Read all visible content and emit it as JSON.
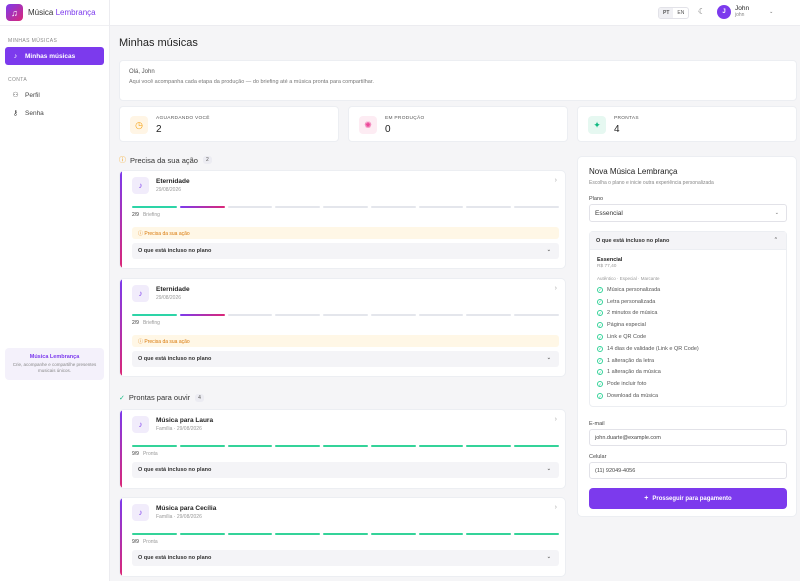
{
  "brand": {
    "name_main": "Música",
    "name_accent": "Lembrança"
  },
  "sidebar": {
    "section_songs": "MINHAS MÚSICAS",
    "item_songs": "Minhas músicas",
    "section_account": "CONTA",
    "item_profile": "Perfil",
    "item_password": "Senha",
    "card_title": "Música Lembrança",
    "card_text": "Crie, acompanhe e compartilhe presentes musicais únicos."
  },
  "topbar": {
    "lang_pt": "PT",
    "lang_en": "EN",
    "user_name": "John",
    "user_initial": "J",
    "user_email": "john"
  },
  "page": {
    "title": "Minhas músicas",
    "greeting": "Olá, John",
    "subtitle": "Aqui você acompanha cada etapa da produção — do briefing até a música pronta para compartilhar."
  },
  "stats": [
    {
      "label": "AGUARDANDO VOCÊ",
      "value": "2",
      "color": "#f59e0b",
      "bg": "#fff5e5"
    },
    {
      "label": "EM PRODUÇÃO",
      "value": "0",
      "color": "#ec4899",
      "bg": "#fdecf3"
    },
    {
      "label": "PRONTAS",
      "value": "4",
      "color": "#10b981",
      "bg": "#e6f8f1"
    }
  ],
  "section_action": {
    "title": "Precisa da sua ação",
    "count": "2"
  },
  "section_ready": {
    "title": "Prontas para ouvir",
    "count": "4"
  },
  "cards": [
    {
      "title": "Eternidade",
      "date": "29/08/2026",
      "step": "2/9",
      "stage": "Briefing",
      "alert": "Precisa da sua ação",
      "included": "O que está incluso no plano",
      "progress": 2
    },
    {
      "title": "Eternidade",
      "date": "29/08/2026",
      "step": "2/9",
      "stage": "Briefing",
      "alert": "Precisa da sua ação",
      "included": "O que está incluso no plano",
      "progress": 2
    },
    {
      "title": "Música para Laura",
      "date": "Família · 29/08/2026",
      "step": "9/9",
      "stage": "Pronta",
      "included": "O que está incluso no plano",
      "progress": 9
    },
    {
      "title": "Música para Cecília",
      "date": "Família · 29/08/2026",
      "step": "9/9",
      "stage": "Pronta",
      "included": "O que está incluso no plano",
      "progress": 9
    }
  ],
  "panel": {
    "title": "Nova Música Lembrança",
    "subtitle": "Escolha o plano e inicie outra experiência personalizada",
    "plan_label": "Plano",
    "plan_value": "Essencial",
    "included_title": "O que está incluso no plano",
    "plan_name": "Essencial",
    "plan_price": "R$ 77,40",
    "plan_line": "Autêntico · Especial · Marcante",
    "features": [
      "Música personalizada",
      "Letra personalizada",
      "2 minutos de música",
      "Página especial",
      "Link e QR Code",
      "14 dias de validade (Link e QR Code)",
      "1 alteração da letra",
      "1 alteração da música",
      "Pode incluir foto",
      "Download da música"
    ],
    "email_label": "E-mail",
    "email_value": "john.duarte@example.com",
    "phone_label": "Celular",
    "phone_value": "(11) 92049-4056",
    "submit_label": "Prosseguir para pagamento"
  }
}
